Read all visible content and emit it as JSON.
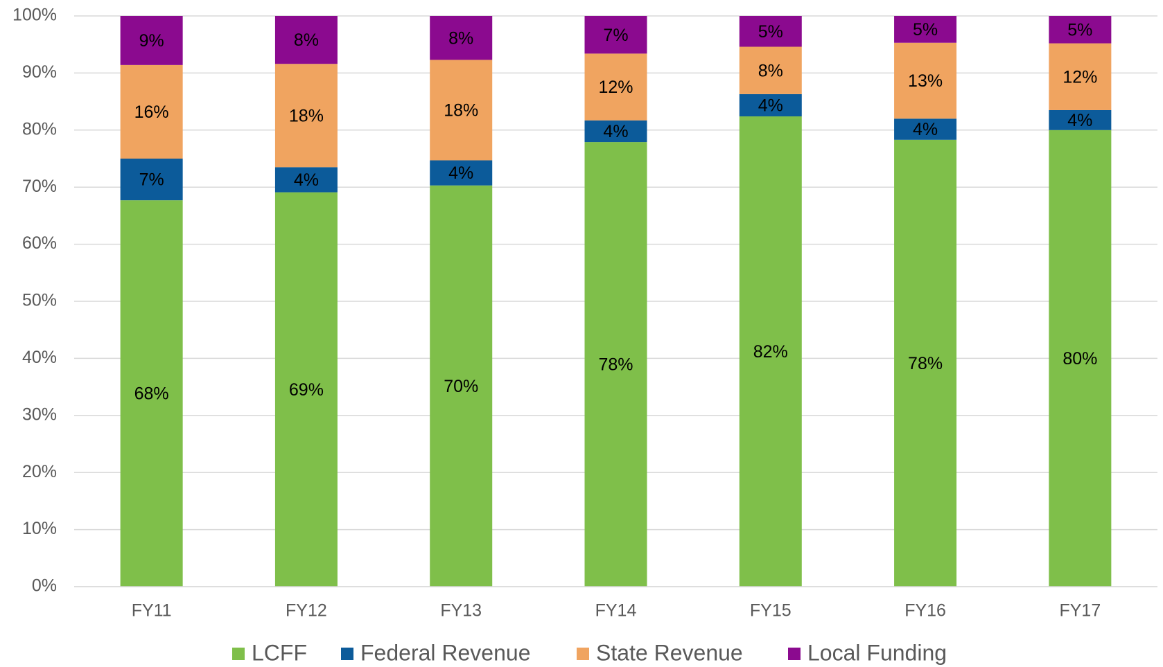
{
  "chart_data": {
    "type": "stacked_bar",
    "categories": [
      "FY11",
      "FY12",
      "FY13",
      "FY14",
      "FY15",
      "FY16",
      "FY17"
    ],
    "series": [
      {
        "name": "LCFF",
        "color": "#7fbf4a",
        "values": [
          67.7,
          69.1,
          70.3,
          77.9,
          82.4,
          78.3,
          80.0
        ],
        "value_labels": [
          "68%",
          "69%",
          "70%",
          "78%",
          "82%",
          "78%",
          "80%"
        ]
      },
      {
        "name": "Federal Revenue",
        "color": "#0c5b9a",
        "values": [
          7.3,
          4.4,
          4.4,
          3.8,
          3.9,
          3.7,
          3.5
        ],
        "value_labels": [
          "7%",
          "4%",
          "4%",
          "4%",
          "4%",
          "4%",
          "4%"
        ]
      },
      {
        "name": "State Revenue",
        "color": "#f0a460",
        "values": [
          16.4,
          18.1,
          17.6,
          11.7,
          8.3,
          13.3,
          11.7
        ],
        "value_labels": [
          "16%",
          "18%",
          "18%",
          "12%",
          "8%",
          "13%",
          "12%"
        ]
      },
      {
        "name": "Local Funding",
        "color": "#8b0a8f",
        "values": [
          8.6,
          8.4,
          7.7,
          6.6,
          5.4,
          4.7,
          4.8
        ],
        "value_labels": [
          "9%",
          "8%",
          "8%",
          "7%",
          "5%",
          "5%",
          "5%"
        ]
      }
    ],
    "ylim": [
      0,
      100
    ],
    "yticks": [
      {
        "value": 0,
        "label": "0%"
      },
      {
        "value": 10,
        "label": "10%"
      },
      {
        "value": 20,
        "label": "20%"
      },
      {
        "value": 30,
        "label": "30%"
      },
      {
        "value": 40,
        "label": "40%"
      },
      {
        "value": 50,
        "label": "50%"
      },
      {
        "value": 60,
        "label": "60%"
      },
      {
        "value": 70,
        "label": "70%"
      },
      {
        "value": 80,
        "label": "80%"
      },
      {
        "value": 90,
        "label": "90%"
      },
      {
        "value": 100,
        "label": "100%"
      }
    ],
    "grid": true,
    "legend": "bottom"
  }
}
